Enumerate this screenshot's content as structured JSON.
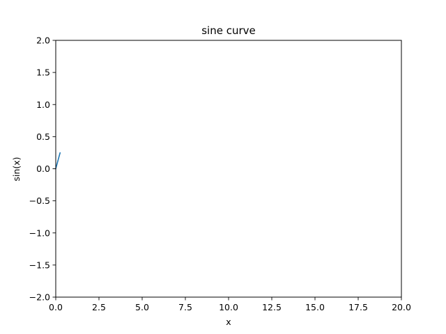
{
  "chart_data": {
    "type": "line",
    "title": "sine curve",
    "xlabel": "x",
    "ylabel": "sin(x)",
    "xlim": [
      0,
      20
    ],
    "ylim": [
      -2,
      2
    ],
    "xticks": [
      0,
      2.5,
      5,
      7.5,
      10,
      12.5,
      15,
      17.5,
      20
    ],
    "xtick_labels": [
      "0.0",
      "2.5",
      "5.0",
      "7.5",
      "10.0",
      "12.5",
      "15.0",
      "17.5",
      "20.0"
    ],
    "yticks": [
      -2,
      -1.5,
      -1,
      -0.5,
      0,
      0.5,
      1,
      1.5,
      2
    ],
    "ytick_labels": [
      "−2.0",
      "−1.5",
      "−1.0",
      "−0.5",
      "0.0",
      "0.5",
      "1.0",
      "1.5",
      "2.0"
    ],
    "grid": false,
    "legend": "none",
    "series": [
      {
        "color": "#1f77b4",
        "x": [
          0,
          0.05,
          0.1,
          0.15,
          0.2,
          0.25
        ],
        "y": [
          0,
          0.05,
          0.0998,
          0.1494,
          0.1987,
          0.2474
        ]
      }
    ]
  }
}
